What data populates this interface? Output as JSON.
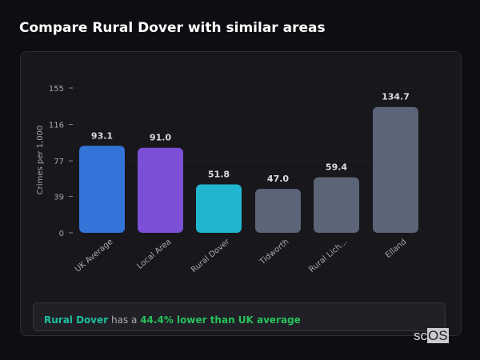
{
  "title": "Compare Rural Dover with similar areas",
  "chart_data": {
    "type": "bar",
    "title": "Compare Rural Dover with similar areas",
    "xlabel": "",
    "ylabel": "Crimes per 1,000",
    "ylim": [
      0,
      155
    ],
    "yticks": [
      0,
      39,
      77,
      116,
      155
    ],
    "categories": [
      "UK Average",
      "Local Area",
      "Rural Dover",
      "Tidworth",
      "Rural Lich...",
      "Elland"
    ],
    "values": [
      93.1,
      91.0,
      51.8,
      47.0,
      59.4,
      134.7
    ],
    "value_labels": [
      "93.1",
      "91.0",
      "51.8",
      "47.0",
      "59.4",
      "134.7"
    ],
    "colors": [
      "#3474d8",
      "#7b4fd6",
      "#21b6cf",
      "#5b6577",
      "#5b6577",
      "#5b6577"
    ]
  },
  "summary": {
    "area": "Rural Dover",
    "middle": " has a ",
    "comparison": "44.4% lower than UK average",
    "area_color": "#1fbfa0",
    "comparison_color": "#27c25c"
  },
  "logo": {
    "prefix": "sc",
    "boxed": "OS"
  }
}
